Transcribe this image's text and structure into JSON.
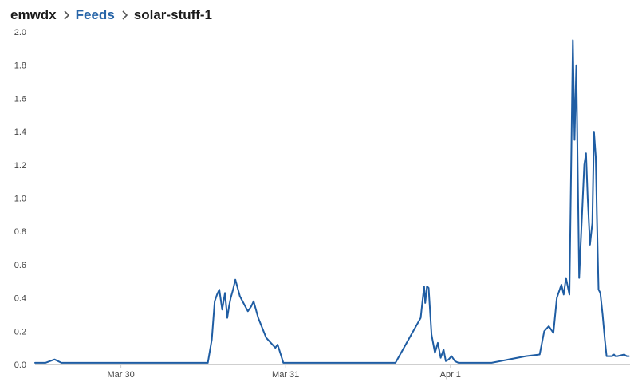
{
  "breadcrumb": {
    "user": "emwdx",
    "section": "Feeds",
    "feed": "solar-stuff-1"
  },
  "icons": {
    "separator": "chevron-right-icon"
  },
  "colors": {
    "line": "#1f5da3",
    "link": "#2765a8"
  },
  "chart_data": {
    "type": "line",
    "title": "",
    "xlabel": "",
    "ylabel": "",
    "ylim": [
      0,
      2.0
    ],
    "yticks": [
      0.0,
      0.2,
      0.4,
      0.6,
      0.8,
      1.0,
      1.2,
      1.4,
      1.6,
      1.8,
      2.0
    ],
    "ytick_labels": [
      "0.0",
      "0.2",
      "0.4",
      "0.6",
      "0.8",
      "1.0",
      "1.2",
      "1.4",
      "1.6",
      "1.8",
      "2.0"
    ],
    "xlim": [
      "2020-03-29T11:30",
      "2020-04-02T02:10"
    ],
    "xticks": [
      "2020-03-30T00:00",
      "2020-03-31T00:00",
      "2020-04-01T00:00"
    ],
    "xtick_labels": [
      "Mar 30",
      "Mar 31",
      "Apr 1"
    ],
    "grid": false,
    "series": [
      {
        "x": [
          "2020-03-29T11:30",
          "2020-03-29T13:00",
          "2020-03-29T14:20",
          "2020-03-29T15:20",
          "2020-03-29T15:40",
          "2020-03-29T16:10",
          "2020-03-29T19:00",
          "2020-03-29T22:00",
          "2020-03-30T02:00",
          "2020-03-30T05:00",
          "2020-03-30T08:00",
          "2020-03-30T11:00",
          "2020-03-30T12:40",
          "2020-03-30T13:15",
          "2020-03-30T13:40",
          "2020-03-30T14:00",
          "2020-03-30T14:20",
          "2020-03-30T14:45",
          "2020-03-30T15:10",
          "2020-03-30T15:30",
          "2020-03-30T15:45",
          "2020-03-30T16:00",
          "2020-03-30T16:20",
          "2020-03-30T16:40",
          "2020-03-30T17:20",
          "2020-03-30T18:30",
          "2020-03-30T19:00",
          "2020-03-30T19:20",
          "2020-03-30T20:00",
          "2020-03-30T21:10",
          "2020-03-30T22:30",
          "2020-03-30T22:50",
          "2020-03-30T23:40",
          "2020-03-31T00:40",
          "2020-03-31T01:00",
          "2020-03-31T01:20",
          "2020-03-31T01:40",
          "2020-03-31T02:30",
          "2020-03-31T06:00",
          "2020-03-31T10:00",
          "2020-03-31T14:30",
          "2020-03-31T16:00",
          "2020-03-31T19:40",
          "2020-03-31T20:10",
          "2020-03-31T20:20",
          "2020-03-31T20:35",
          "2020-03-31T20:50",
          "2020-03-31T21:15",
          "2020-03-31T21:45",
          "2020-03-31T22:10",
          "2020-03-31T22:35",
          "2020-03-31T23:00",
          "2020-03-31T23:20",
          "2020-03-31T23:45",
          "2020-04-01T00:10",
          "2020-04-01T00:40",
          "2020-04-01T01:10",
          "2020-04-01T01:40",
          "2020-04-01T03:00",
          "2020-04-01T06:00",
          "2020-04-01T11:00",
          "2020-04-01T13:00",
          "2020-04-01T13:40",
          "2020-04-01T14:20",
          "2020-04-01T15:00",
          "2020-04-01T15:30",
          "2020-04-01T16:10",
          "2020-04-01T16:30",
          "2020-04-01T16:50",
          "2020-04-01T17:20",
          "2020-04-01T17:50",
          "2020-04-01T18:05",
          "2020-04-01T18:20",
          "2020-04-01T18:45",
          "2020-04-01T19:30",
          "2020-04-01T19:45",
          "2020-04-01T20:00",
          "2020-04-01T20:20",
          "2020-04-01T20:40",
          "2020-04-01T20:55",
          "2020-04-01T21:10",
          "2020-04-01T21:20",
          "2020-04-01T21:35",
          "2020-04-01T21:50",
          "2020-04-01T22:10",
          "2020-04-01T22:30",
          "2020-04-01T22:45",
          "2020-04-01T23:00",
          "2020-04-01T23:15",
          "2020-04-01T23:35",
          "2020-04-01T23:50",
          "2020-04-02T00:00",
          "2020-04-02T00:20",
          "2020-04-02T01:20",
          "2020-04-02T01:40",
          "2020-04-02T02:00"
        ],
        "y": [
          0.01,
          0.01,
          0.03,
          0.01,
          0.01,
          0.01,
          0.01,
          0.01,
          0.01,
          0.01,
          0.01,
          0.01,
          0.01,
          0.15,
          0.38,
          0.42,
          0.45,
          0.33,
          0.43,
          0.28,
          0.35,
          0.4,
          0.45,
          0.51,
          0.41,
          0.32,
          0.35,
          0.38,
          0.28,
          0.16,
          0.1,
          0.12,
          0.01,
          0.01,
          0.01,
          0.01,
          0.01,
          0.01,
          0.01,
          0.01,
          0.01,
          0.01,
          0.28,
          0.47,
          0.37,
          0.47,
          0.46,
          0.18,
          0.07,
          0.13,
          0.04,
          0.09,
          0.02,
          0.03,
          0.05,
          0.02,
          0.01,
          0.01,
          0.01,
          0.01,
          0.05,
          0.06,
          0.2,
          0.23,
          0.19,
          0.4,
          0.48,
          0.42,
          0.52,
          0.42,
          1.95,
          1.35,
          1.8,
          0.52,
          1.2,
          1.27,
          1.0,
          0.72,
          0.85,
          1.4,
          1.25,
          0.9,
          0.45,
          0.43,
          0.3,
          0.15,
          0.05,
          0.05,
          0.05,
          0.05,
          0.06,
          0.05,
          0.05,
          0.06,
          0.05,
          0.05
        ]
      }
    ]
  }
}
